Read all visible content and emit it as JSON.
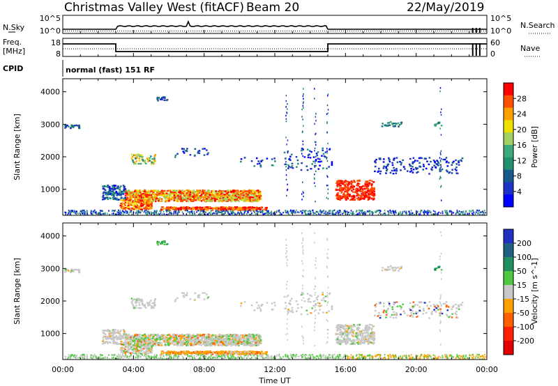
{
  "header": {
    "station": "Christmas Valley West (fitACF)",
    "beam": "Beam 20",
    "date": "22/May/2019",
    "cpid_label": "CPID",
    "cpid_text": "normal (fast) 151 RF"
  },
  "noise_panel": {
    "left_label": "N.Sky",
    "right_label": "N.Search",
    "left_ticks": [
      "10^5",
      "10^0"
    ],
    "right_ticks": [
      "10^5",
      "10^0"
    ]
  },
  "freq_panel": {
    "left_label": "Freq.",
    "left_unit": "[MHz]",
    "right_label": "Nave",
    "left_ticks": [
      "18",
      "8"
    ],
    "right_ticks": [
      "60",
      "0"
    ]
  },
  "chart_data": [
    {
      "type": "heatmap",
      "name": "power",
      "ylabel": "Slant Range [km]",
      "xlabel": "Time UT",
      "xlim": [
        0,
        24
      ],
      "ylim": [
        200,
        4400
      ],
      "x_ticks": [
        "00:00",
        "04:00",
        "08:00",
        "12:00",
        "16:00",
        "20:00",
        "00:00"
      ],
      "y_ticks": [
        1000,
        2000,
        3000,
        4000
      ],
      "colorbar": {
        "label": "Power [dB]",
        "ticks": [
          "28",
          "24",
          "20",
          "16",
          "12",
          "8",
          "4"
        ],
        "colors": [
          "#ff0000",
          "#ff5000",
          "#ffa000",
          "#f0e000",
          "#a0d060",
          "#3caa78",
          "#209070",
          "#185a8c",
          "#1e32c8",
          "#0000ff"
        ]
      }
    },
    {
      "type": "heatmap",
      "name": "velocity",
      "ylabel": "Slant Range [km]",
      "xlabel": "Time UT",
      "xlim": [
        0,
        24
      ],
      "ylim": [
        200,
        4400
      ],
      "x_ticks": [
        "00:00",
        "04:00",
        "08:00",
        "12:00",
        "16:00",
        "20:00",
        "00:00"
      ],
      "y_ticks": [
        1000,
        2000,
        3000,
        4000
      ],
      "colorbar": {
        "label": "Velocity [m s^-1]",
        "ticks": [
          "200",
          "100",
          "50",
          "15",
          "-15",
          "-50",
          "-100",
          "-200"
        ],
        "colors": [
          "#2030c0",
          "#206080",
          "#209060",
          "#50c840",
          "#c8c8c8",
          "#ffa000",
          "#ff6000",
          "#ff2000",
          "#e00000"
        ]
      }
    }
  ],
  "axis": {
    "xlabel": "Time UT"
  }
}
